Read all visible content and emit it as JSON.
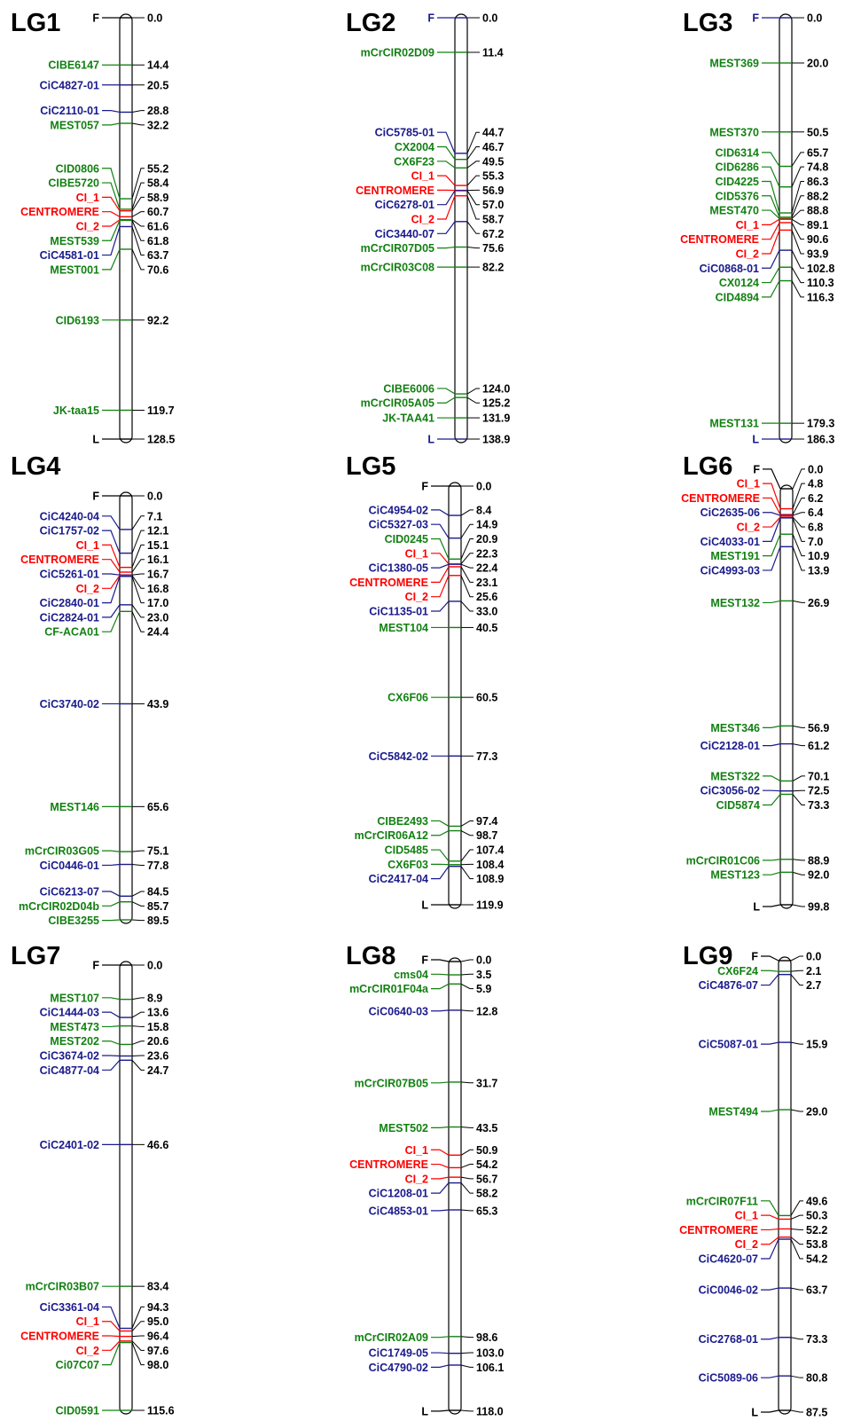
{
  "figure": {
    "colors": {
      "green": "#128012",
      "blue": "#1a1a8c",
      "red": "#ff0000",
      "black": "#000000"
    },
    "groups": [
      {
        "title": "LG1",
        "markers": [
          {
            "name": "F",
            "pos": "0.0",
            "c": "black"
          },
          {
            "name": "CIBE6147",
            "pos": "14.4",
            "c": "green"
          },
          {
            "name": "CiC4827-01",
            "pos": "20.5",
            "c": "blue"
          },
          {
            "name": "CiC2110-01",
            "pos": "28.8",
            "c": "blue"
          },
          {
            "name": "MEST057",
            "pos": "32.2",
            "c": "green"
          },
          {
            "name": "CID0806",
            "pos": "55.2",
            "c": "green"
          },
          {
            "name": "CIBE5720",
            "pos": "58.4",
            "c": "green"
          },
          {
            "name": "CI_1",
            "pos": "58.9",
            "c": "red"
          },
          {
            "name": "CENTROMERE",
            "pos": "60.7",
            "c": "red"
          },
          {
            "name": "CI_2",
            "pos": "61.6",
            "c": "red"
          },
          {
            "name": "MEST539",
            "pos": "61.8",
            "c": "green"
          },
          {
            "name": "CiC4581-01",
            "pos": "63.7",
            "c": "blue"
          },
          {
            "name": "MEST001",
            "pos": "70.6",
            "c": "green"
          },
          {
            "name": "CID6193",
            "pos": "92.2",
            "c": "green"
          },
          {
            "name": "JK-taa15",
            "pos": "119.7",
            "c": "green"
          },
          {
            "name": "L",
            "pos": "128.5",
            "c": "black"
          }
        ]
      },
      {
        "title": "LG2",
        "markers": [
          {
            "name": "F",
            "pos": "0.0",
            "c": "blue"
          },
          {
            "name": "mCrCIR02D09",
            "pos": "11.4",
            "c": "green"
          },
          {
            "name": "CiC5785-01",
            "pos": "44.7",
            "c": "blue"
          },
          {
            "name": "CX2004",
            "pos": "46.7",
            "c": "green"
          },
          {
            "name": "CX6F23",
            "pos": "49.5",
            "c": "green"
          },
          {
            "name": "CI_1",
            "pos": "55.3",
            "c": "red"
          },
          {
            "name": "CENTROMERE",
            "pos": "56.9",
            "c": "red"
          },
          {
            "name": "CiC6278-01",
            "pos": "57.0",
            "c": "blue"
          },
          {
            "name": "CI_2",
            "pos": "58.7",
            "c": "red"
          },
          {
            "name": "CiC3440-07",
            "pos": "67.2",
            "c": "blue"
          },
          {
            "name": "mCrCIR07D05",
            "pos": "75.6",
            "c": "green"
          },
          {
            "name": "mCrCIR03C08",
            "pos": "82.2",
            "c": "green"
          },
          {
            "name": "CIBE6006",
            "pos": "124.0",
            "c": "green"
          },
          {
            "name": "mCrCIR05A05",
            "pos": "125.2",
            "c": "green"
          },
          {
            "name": "JK-TAA41",
            "pos": "131.9",
            "c": "green"
          },
          {
            "name": "L",
            "pos": "138.9",
            "c": "blue"
          }
        ]
      },
      {
        "title": "LG3",
        "markers": [
          {
            "name": "F",
            "pos": "0.0",
            "c": "blue"
          },
          {
            "name": "MEST369",
            "pos": "20.0",
            "c": "green"
          },
          {
            "name": "MEST370",
            "pos": "50.5",
            "c": "green"
          },
          {
            "name": "CID6314",
            "pos": "65.7",
            "c": "green"
          },
          {
            "name": "CID6286",
            "pos": "74.8",
            "c": "green"
          },
          {
            "name": "CID4225",
            "pos": "86.3",
            "c": "green"
          },
          {
            "name": "CID5376",
            "pos": "88.2",
            "c": "green"
          },
          {
            "name": "MEST470",
            "pos": "88.8",
            "c": "green"
          },
          {
            "name": "CI_1",
            "pos": "89.1",
            "c": "red"
          },
          {
            "name": "CENTROMERE",
            "pos": "90.6",
            "c": "red"
          },
          {
            "name": "CI_2",
            "pos": "93.9",
            "c": "red"
          },
          {
            "name": "CiC0868-01",
            "pos": "102.8",
            "c": "blue"
          },
          {
            "name": "CX0124",
            "pos": "110.3",
            "c": "green"
          },
          {
            "name": "CID4894",
            "pos": "116.3",
            "c": "green"
          },
          {
            "name": "MEST131",
            "pos": "179.3",
            "c": "green"
          },
          {
            "name": "L",
            "pos": "186.3",
            "c": "blue"
          }
        ]
      },
      {
        "title": "LG4",
        "markers": [
          {
            "name": "F",
            "pos": "0.0",
            "c": "black"
          },
          {
            "name": "CiC4240-04",
            "pos": "7.1",
            "c": "blue"
          },
          {
            "name": "CiC1757-02",
            "pos": "12.1",
            "c": "blue"
          },
          {
            "name": "CI_1",
            "pos": "15.1",
            "c": "red"
          },
          {
            "name": "CENTROMERE",
            "pos": "16.1",
            "c": "red"
          },
          {
            "name": "CiC5261-01",
            "pos": "16.7",
            "c": "blue"
          },
          {
            "name": "CI_2",
            "pos": "16.8",
            "c": "red"
          },
          {
            "name": "CiC2840-01",
            "pos": "17.0",
            "c": "blue"
          },
          {
            "name": "CiC2824-01",
            "pos": "23.0",
            "c": "blue"
          },
          {
            "name": "CF-ACA01",
            "pos": "24.4",
            "c": "green"
          },
          {
            "name": "CiC3740-02",
            "pos": "43.9",
            "c": "blue"
          },
          {
            "name": "MEST146",
            "pos": "65.6",
            "c": "green"
          },
          {
            "name": "mCrCIR03G05",
            "pos": "75.1",
            "c": "green"
          },
          {
            "name": "CiC0446-01",
            "pos": "77.8",
            "c": "blue"
          },
          {
            "name": "CiC6213-07",
            "pos": "84.5",
            "c": "blue"
          },
          {
            "name": "mCrCIR02D04b",
            "pos": "85.7",
            "c": "green"
          },
          {
            "name": "CIBE3255",
            "pos": "89.5",
            "c": "green"
          }
        ]
      },
      {
        "title": "LG5",
        "markers": [
          {
            "name": "F",
            "pos": "0.0",
            "c": "black"
          },
          {
            "name": "CiC4954-02",
            "pos": "8.4",
            "c": "blue"
          },
          {
            "name": "CiC5327-03",
            "pos": "14.9",
            "c": "blue"
          },
          {
            "name": "CID0245",
            "pos": "20.9",
            "c": "green"
          },
          {
            "name": "CI_1",
            "pos": "22.3",
            "c": "red"
          },
          {
            "name": "CiC1380-05",
            "pos": "22.4",
            "c": "blue"
          },
          {
            "name": "CENTROMERE",
            "pos": "23.1",
            "c": "red"
          },
          {
            "name": "CI_2",
            "pos": "25.6",
            "c": "red"
          },
          {
            "name": "CiC1135-01",
            "pos": "33.0",
            "c": "blue"
          },
          {
            "name": "MEST104",
            "pos": "40.5",
            "c": "green"
          },
          {
            "name": "CX6F06",
            "pos": "60.5",
            "c": "green"
          },
          {
            "name": "CiC5842-02",
            "pos": "77.3",
            "c": "blue"
          },
          {
            "name": "CIBE2493",
            "pos": "97.4",
            "c": "green"
          },
          {
            "name": "mCrCIR06A12",
            "pos": "98.7",
            "c": "green"
          },
          {
            "name": "CID5485",
            "pos": "107.4",
            "c": "green"
          },
          {
            "name": "CX6F03",
            "pos": "108.4",
            "c": "green"
          },
          {
            "name": "CiC2417-04",
            "pos": "108.9",
            "c": "blue"
          },
          {
            "name": "L",
            "pos": "119.9",
            "c": "black"
          }
        ]
      },
      {
        "title": "LG6",
        "markers": [
          {
            "name": "F",
            "pos": "0.0",
            "c": "black"
          },
          {
            "name": "CI_1",
            "pos": "4.8",
            "c": "red"
          },
          {
            "name": "CENTROMERE",
            "pos": "6.2",
            "c": "red"
          },
          {
            "name": "CiC2635-06",
            "pos": "6.4",
            "c": "blue"
          },
          {
            "name": "CI_2",
            "pos": "6.8",
            "c": "red"
          },
          {
            "name": "CiC4033-01",
            "pos": "7.0",
            "c": "blue"
          },
          {
            "name": "MEST191",
            "pos": "10.9",
            "c": "green"
          },
          {
            "name": "CiC4993-03",
            "pos": "13.9",
            "c": "blue"
          },
          {
            "name": "MEST132",
            "pos": "26.9",
            "c": "green"
          },
          {
            "name": "MEST346",
            "pos": "56.9",
            "c": "green"
          },
          {
            "name": "CiC2128-01",
            "pos": "61.2",
            "c": "blue"
          },
          {
            "name": "MEST322",
            "pos": "70.1",
            "c": "green"
          },
          {
            "name": "CiC3056-02",
            "pos": "72.5",
            "c": "blue"
          },
          {
            "name": "CID5874",
            "pos": "73.3",
            "c": "green"
          },
          {
            "name": "mCrCIR01C06",
            "pos": "88.9",
            "c": "green"
          },
          {
            "name": "MEST123",
            "pos": "92.0",
            "c": "green"
          },
          {
            "name": "L",
            "pos": "99.8",
            "c": "black"
          }
        ]
      },
      {
        "title": "LG7",
        "markers": [
          {
            "name": "F",
            "pos": "0.0",
            "c": "black"
          },
          {
            "name": "MEST107",
            "pos": "8.9",
            "c": "green"
          },
          {
            "name": "CiC1444-03",
            "pos": "13.6",
            "c": "blue"
          },
          {
            "name": "MEST473",
            "pos": "15.8",
            "c": "green"
          },
          {
            "name": "MEST202",
            "pos": "20.6",
            "c": "green"
          },
          {
            "name": "CiC3674-02",
            "pos": "23.6",
            "c": "blue"
          },
          {
            "name": "CiC4877-04",
            "pos": "24.7",
            "c": "blue"
          },
          {
            "name": "CiC2401-02",
            "pos": "46.6",
            "c": "blue"
          },
          {
            "name": "mCrCIR03B07",
            "pos": "83.4",
            "c": "green"
          },
          {
            "name": "CiC3361-04",
            "pos": "94.3",
            "c": "blue"
          },
          {
            "name": "CI_1",
            "pos": "95.0",
            "c": "red"
          },
          {
            "name": "CENTROMERE",
            "pos": "96.4",
            "c": "red"
          },
          {
            "name": "CI_2",
            "pos": "97.6",
            "c": "red"
          },
          {
            "name": "Ci07C07",
            "pos": "98.0",
            "c": "green"
          },
          {
            "name": "CID0591",
            "pos": "115.6",
            "c": "green"
          }
        ]
      },
      {
        "title": "LG8",
        "markers": [
          {
            "name": "F",
            "pos": "0.0",
            "c": "black"
          },
          {
            "name": "cms04",
            "pos": "3.5",
            "c": "green"
          },
          {
            "name": "mCrCIR01F04a",
            "pos": "5.9",
            "c": "green"
          },
          {
            "name": "CiC0640-03",
            "pos": "12.8",
            "c": "blue"
          },
          {
            "name": "mCrCIR07B05",
            "pos": "31.7",
            "c": "green"
          },
          {
            "name": "MEST502",
            "pos": "43.5",
            "c": "green"
          },
          {
            "name": "CI_1",
            "pos": "50.9",
            "c": "red"
          },
          {
            "name": "CENTROMERE",
            "pos": "54.2",
            "c": "red"
          },
          {
            "name": "CI_2",
            "pos": "56.7",
            "c": "red"
          },
          {
            "name": "CiC1208-01",
            "pos": "58.2",
            "c": "blue"
          },
          {
            "name": "CiC4853-01",
            "pos": "65.3",
            "c": "blue"
          },
          {
            "name": "mCrCIR02A09",
            "pos": "98.6",
            "c": "green"
          },
          {
            "name": "CiC1749-05",
            "pos": "103.0",
            "c": "blue"
          },
          {
            "name": "CiC4790-02",
            "pos": "106.1",
            "c": "blue"
          },
          {
            "name": "L",
            "pos": "118.0",
            "c": "black"
          }
        ]
      },
      {
        "title": "LG9",
        "markers": [
          {
            "name": "F",
            "pos": "0.0",
            "c": "black"
          },
          {
            "name": "CX6F24",
            "pos": "2.1",
            "c": "green"
          },
          {
            "name": "CiC4876-07",
            "pos": "2.7",
            "c": "blue"
          },
          {
            "name": "CiC5087-01",
            "pos": "15.9",
            "c": "blue"
          },
          {
            "name": "MEST494",
            "pos": "29.0",
            "c": "green"
          },
          {
            "name": "mCrCIR07F11",
            "pos": "49.6",
            "c": "green"
          },
          {
            "name": "CI_1",
            "pos": "50.3",
            "c": "red"
          },
          {
            "name": "CENTROMERE",
            "pos": "52.2",
            "c": "red"
          },
          {
            "name": "CI_2",
            "pos": "53.8",
            "c": "red"
          },
          {
            "name": "CiC4620-07",
            "pos": "54.2",
            "c": "blue"
          },
          {
            "name": "CiC0046-02",
            "pos": "63.7",
            "c": "blue"
          },
          {
            "name": "CiC2768-01",
            "pos": "73.3",
            "c": "blue"
          },
          {
            "name": "CiC5089-06",
            "pos": "80.8",
            "c": "blue"
          },
          {
            "name": "L",
            "pos": "87.5",
            "c": "black"
          }
        ]
      }
    ]
  }
}
